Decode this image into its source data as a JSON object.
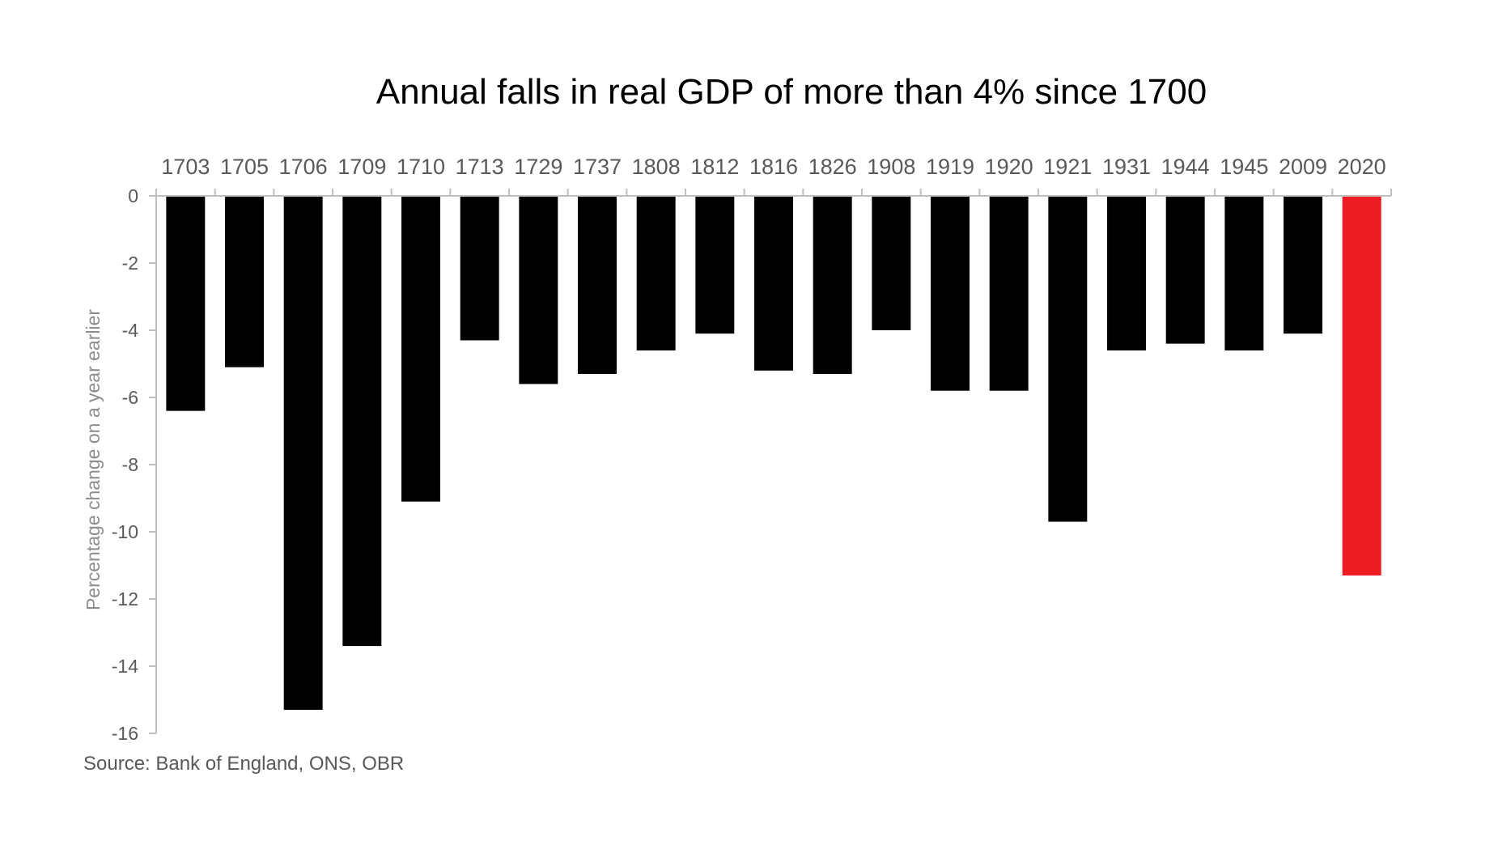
{
  "chart_data": {
    "type": "bar",
    "title": "Annual falls in real GDP of more than 4% since 1700",
    "xlabel": "",
    "ylabel": "Percentage change on a year earlier",
    "categories": [
      "1703",
      "1705",
      "1706",
      "1709",
      "1710",
      "1713",
      "1729",
      "1737",
      "1808",
      "1812",
      "1816",
      "1826",
      "1908",
      "1919",
      "1920",
      "1921",
      "1931",
      "1944",
      "1945",
      "2009",
      "2020"
    ],
    "values": [
      -6.4,
      -5.1,
      -15.3,
      -13.4,
      -9.1,
      -4.3,
      -5.6,
      -5.3,
      -4.6,
      -4.1,
      -5.2,
      -5.3,
      -4.0,
      -5.8,
      -5.8,
      -9.7,
      -4.6,
      -4.4,
      -4.6,
      -4.1,
      -11.3
    ],
    "ylim": [
      -16,
      0
    ],
    "yticks": [
      0,
      -2,
      -4,
      -6,
      -8,
      -10,
      -12,
      -14,
      -16
    ],
    "x_axis_position": "top",
    "legend": "none",
    "grid": false,
    "colors": {
      "default_bar": "#000000",
      "highlight_bar": "#ed1c24",
      "axis": "#bfbfbf"
    },
    "highlight_category": "2020",
    "source": "Source:  Bank of England, ONS, OBR"
  }
}
